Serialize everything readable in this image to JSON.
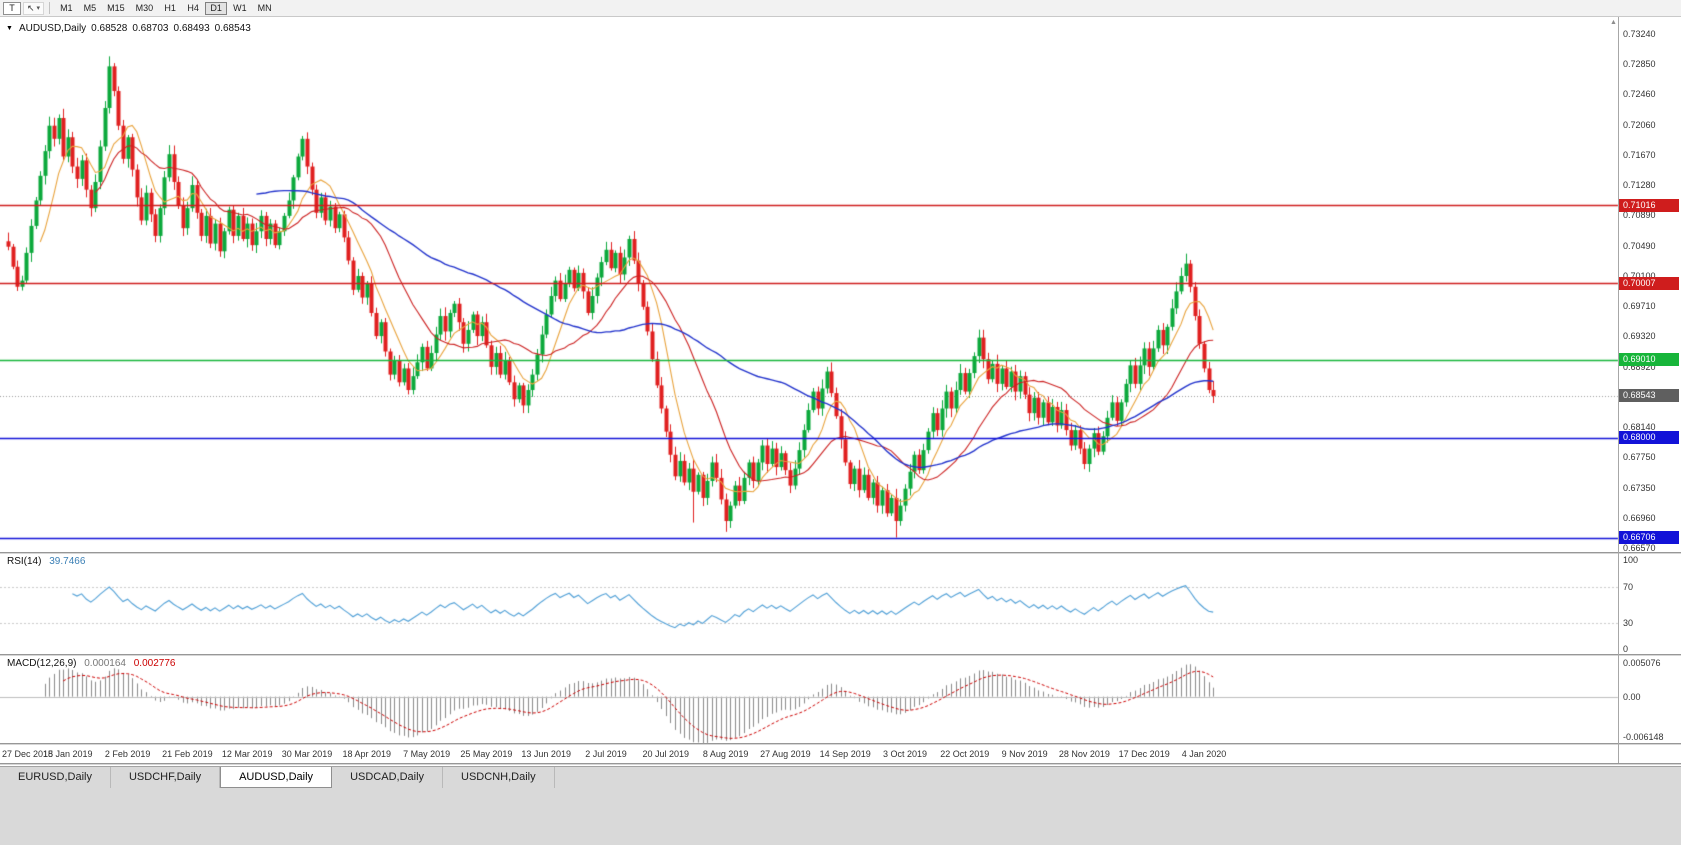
{
  "icons": {
    "collapse": "▼",
    "cursor": "↖",
    "caret": "▾",
    "scroll_up": "▲"
  },
  "toolbar": {
    "t_button": "T",
    "timeframes": [
      "M1",
      "M5",
      "M15",
      "M30",
      "H1",
      "H4",
      "D1",
      "W1",
      "MN"
    ],
    "active_timeframe": "D1"
  },
  "chart": {
    "title": {
      "symbol": "AUDUSD,Daily",
      "open": "0.68528",
      "high": "0.68703",
      "low": "0.68493",
      "close": "0.68543"
    },
    "price_axis": {
      "ticks": [
        "0.73240",
        "0.72850",
        "0.72460",
        "0.72060",
        "0.71670",
        "0.71280",
        "0.70890",
        "0.70490",
        "0.70100",
        "0.69710",
        "0.69320",
        "0.68920",
        "0.68530",
        "0.68140",
        "0.67750",
        "0.67350",
        "0.66960",
        "0.66570"
      ]
    },
    "hlines": [
      {
        "price": 0.71016,
        "label": "0.71016",
        "color": "#CF1D1D"
      },
      {
        "price": 0.70007,
        "label": "0.70007",
        "color": "#CF1D1D"
      },
      {
        "price": 0.6901,
        "label": "0.69010",
        "color": "#17B53A"
      },
      {
        "price": 0.68,
        "label": "0.68000",
        "color": "#1212D8"
      },
      {
        "price": 0.66706,
        "label": "0.66706",
        "color": "#1212D8"
      }
    ],
    "bid_line": {
      "price": 0.68543,
      "label": "0.68543",
      "color": "#999999",
      "tag_bg": "#5F5F5F"
    }
  },
  "rsi": {
    "label": "RSI(14)",
    "value": "39.7466",
    "period": 14,
    "color": "#4F9FD6",
    "level_labels": [
      "100",
      "70",
      "30",
      "0"
    ],
    "dashed_levels": [
      70,
      30
    ]
  },
  "macd": {
    "label": "MACD(12,26,9)",
    "value1": "0.000164",
    "value2": "0.002776",
    "fast": 12,
    "slow": 26,
    "signal": 9,
    "axis": [
      "0.005076",
      "0.00",
      "-0.006148"
    ],
    "ylim": [
      -0.006148,
      0.005076
    ],
    "hist_color": "#8A8A8A",
    "signal_color": "#CC0000"
  },
  "tabs": {
    "items": [
      "EURUSD,Daily",
      "USDCHF,Daily",
      "AUDUSD,Daily",
      "USDCAD,Daily",
      "USDCNH,Daily"
    ],
    "active": "AUDUSD,Daily"
  },
  "colors": {
    "up": "#0CA93C",
    "down": "#E02020",
    "ma_fast": "#E8A33D",
    "ma_mid": "#CC2222",
    "ma_slow": "#2233CC"
  },
  "chart_data": {
    "type": "candlestick",
    "symbol": "AUDUSD",
    "timeframe": "Daily",
    "ylim": [
      0.6657,
      0.7324
    ],
    "label_every": 13,
    "x_labels": [
      "27 Dec 2018",
      "15 Jan 2019",
      "2 Feb 2019",
      "21 Feb 2019",
      "12 Mar 2019",
      "30 Mar 2019",
      "18 Apr 2019",
      "7 May 2019",
      "25 May 2019",
      "13 Jun 2019",
      "2 Jul 2019",
      "20 Jul 2019",
      "8 Aug 2019",
      "27 Aug 2019",
      "14 Sep 2019",
      "3 Oct 2019",
      "22 Oct 2019",
      "9 Nov 2019",
      "28 Nov 2019",
      "17 Dec 2019",
      "4 Jan 2020"
    ],
    "overlays": [
      {
        "name": "MA-fast",
        "period": 8,
        "color_key": "ma_fast"
      },
      {
        "name": "MA-mid",
        "period": 20,
        "color_key": "ma_mid"
      },
      {
        "name": "MA-slow",
        "period": 55,
        "color_key": "ma_slow"
      }
    ],
    "closes": [
      0.7048,
      0.7022,
      0.6996,
      0.7004,
      0.704,
      0.7075,
      0.7108,
      0.714,
      0.7172,
      0.7205,
      0.7188,
      0.7215,
      0.7165,
      0.719,
      0.7152,
      0.7136,
      0.716,
      0.7122,
      0.7098,
      0.7132,
      0.7178,
      0.7228,
      0.7282,
      0.725,
      0.7205,
      0.7162,
      0.719,
      0.7148,
      0.7112,
      0.7082,
      0.7118,
      0.709,
      0.7062,
      0.7098,
      0.7138,
      0.7168,
      0.7132,
      0.7102,
      0.7072,
      0.7098,
      0.7128,
      0.7092,
      0.7062,
      0.7088,
      0.7052,
      0.7078,
      0.7042,
      0.7068,
      0.7096,
      0.7062,
      0.7088,
      0.7058,
      0.7078,
      0.705,
      0.7068,
      0.7088,
      0.7058,
      0.7078,
      0.705,
      0.7068,
      0.7088,
      0.7108,
      0.7138,
      0.7165,
      0.7188,
      0.7152,
      0.7122,
      0.7092,
      0.7112,
      0.7082,
      0.71,
      0.7072,
      0.709,
      0.706,
      0.703,
      0.6992,
      0.701,
      0.6982,
      0.7,
      0.6962,
      0.6932,
      0.695,
      0.6912,
      0.6882,
      0.69,
      0.6872,
      0.689,
      0.6862,
      0.688,
      0.6898,
      0.6918,
      0.689,
      0.691,
      0.6934,
      0.6958,
      0.6938,
      0.6962,
      0.6974,
      0.695,
      0.6922,
      0.694,
      0.696,
      0.6932,
      0.695,
      0.692,
      0.6892,
      0.691,
      0.6882,
      0.69,
      0.6872,
      0.685,
      0.6868,
      0.6842,
      0.6862,
      0.6882,
      0.6908,
      0.6934,
      0.696,
      0.6984,
      0.7004,
      0.698,
      0.7,
      0.7018,
      0.6994,
      0.7014,
      0.699,
      0.6962,
      0.6984,
      0.7008,
      0.7028,
      0.7044,
      0.702,
      0.704,
      0.7012,
      0.7034,
      0.7058,
      0.703,
      0.7,
      0.697,
      0.6938,
      0.6902,
      0.6868,
      0.6838,
      0.6808,
      0.6778,
      0.675,
      0.677,
      0.6742,
      0.676,
      0.673,
      0.6752,
      0.6722,
      0.6744,
      0.6768,
      0.6748,
      0.672,
      0.6692,
      0.6712,
      0.6738,
      0.6718,
      0.6748,
      0.6768,
      0.6744,
      0.6768,
      0.679,
      0.6766,
      0.6786,
      0.6762,
      0.678,
      0.6758,
      0.6738,
      0.676,
      0.6784,
      0.681,
      0.6836,
      0.686,
      0.6838,
      0.6864,
      0.6886,
      0.6858,
      0.6828,
      0.6798,
      0.6768,
      0.674,
      0.676,
      0.6732,
      0.6752,
      0.6722,
      0.6742,
      0.6712,
      0.6732,
      0.6702,
      0.6722,
      0.6692,
      0.6712,
      0.6734,
      0.6756,
      0.6778,
      0.6758,
      0.6784,
      0.6808,
      0.6832,
      0.681,
      0.6838,
      0.686,
      0.6838,
      0.6862,
      0.6884,
      0.686,
      0.6884,
      0.6906,
      0.693,
      0.6902,
      0.6876,
      0.6896,
      0.687,
      0.689,
      0.6866,
      0.6886,
      0.686,
      0.688,
      0.6856,
      0.6832,
      0.6852,
      0.6826,
      0.6846,
      0.682,
      0.684,
      0.6816,
      0.6836,
      0.681,
      0.679,
      0.681,
      0.6786,
      0.6766,
      0.6786,
      0.6806,
      0.6782,
      0.6802,
      0.6826,
      0.6846,
      0.6822,
      0.6846,
      0.687,
      0.6894,
      0.687,
      0.6894,
      0.6916,
      0.6892,
      0.6916,
      0.694,
      0.692,
      0.6944,
      0.6968,
      0.699,
      0.701,
      0.7026,
      0.6996,
      0.6958,
      0.6922,
      0.689,
      0.6862,
      0.68543
    ],
    "spikes": [
      {
        "i": 22,
        "high": 0.7295
      },
      {
        "i": 112,
        "low": 0.6832
      },
      {
        "i": 149,
        "low": 0.669
      },
      {
        "i": 156,
        "low": 0.6678
      },
      {
        "i": 193,
        "low": 0.66706
      },
      {
        "i": 256,
        "high": 0.7039
      }
    ]
  }
}
